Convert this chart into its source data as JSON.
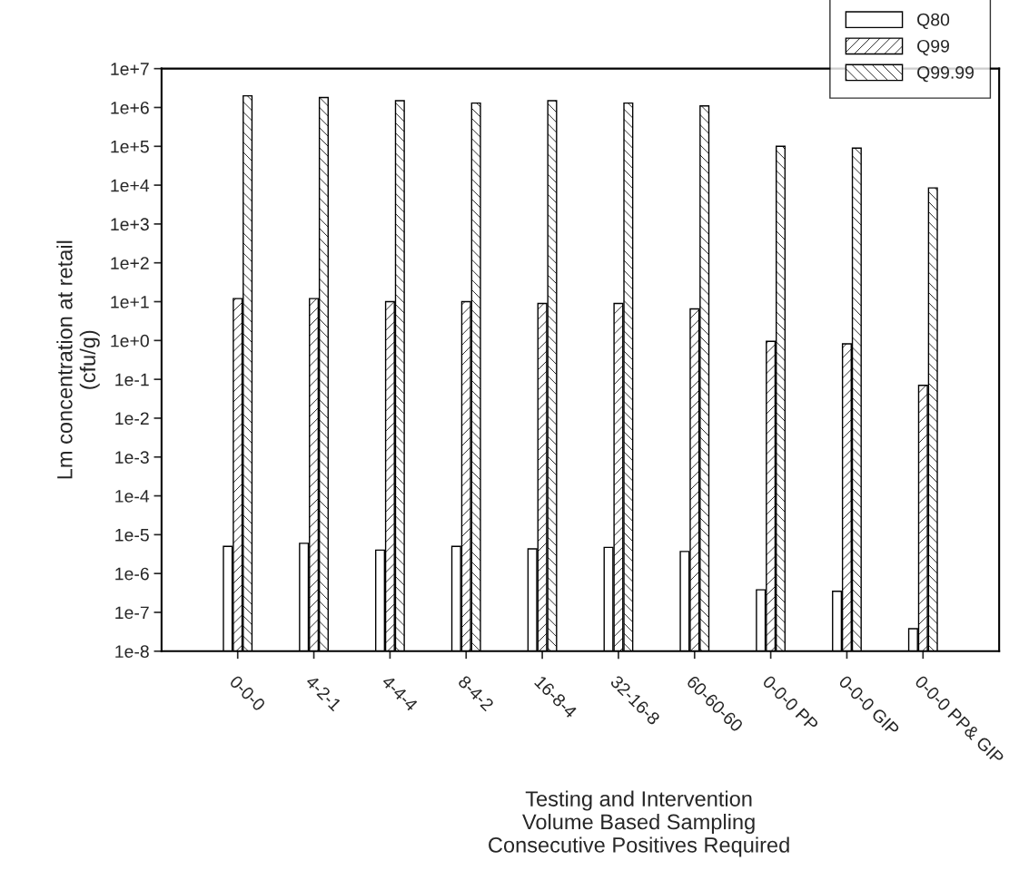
{
  "chart_data": {
    "type": "bar",
    "categories": [
      "0-0-0",
      "4-2-1",
      "4-4-4",
      "8-4-2",
      "16-8-4",
      "32-16-8",
      "60-60-60",
      "0-0-0 PP",
      "0-0-0 GIP",
      "0-0-0 PP& GIP"
    ],
    "series": [
      {
        "name": "Q80",
        "color": "#ffffff",
        "values": [
          5e-06,
          6e-06,
          4e-06,
          5e-06,
          4.3e-06,
          4.7e-06,
          3.7e-06,
          3.8e-07,
          3.5e-07,
          3.8e-08
        ]
      },
      {
        "name": "Q99",
        "color": "#000000",
        "values": [
          12,
          12,
          10,
          10,
          9,
          9,
          6.5,
          0.95,
          0.82,
          0.07
        ]
      },
      {
        "name": "Q99.99",
        "color": "#000000",
        "values": [
          2000000.0,
          1800000.0,
          1500000.0,
          1300000.0,
          1500000.0,
          1300000.0,
          1100000.0,
          100000.0,
          90000.0,
          8500.0
        ]
      }
    ],
    "xlabel": "Testing and Intervention\nVolume Based Sampling\nConsecutive Positives Required",
    "ylabel": "Lm concentration at retail\n(cfu/g)",
    "log": "y",
    "ylim": [
      1e-08,
      10000000.0
    ],
    "yticks": [
      {
        "value": 1e-08,
        "label": "1e-8"
      },
      {
        "value": 1e-07,
        "label": "1e-7"
      },
      {
        "value": 1e-06,
        "label": "1e-6"
      },
      {
        "value": 1e-05,
        "label": "1e-5"
      },
      {
        "value": 0.0001,
        "label": "1e-4"
      },
      {
        "value": 0.001,
        "label": "1e-3"
      },
      {
        "value": 0.01,
        "label": "1e-2"
      },
      {
        "value": 0.1,
        "label": "1e-1"
      },
      {
        "value": 1,
        "label": "1e+0"
      },
      {
        "value": 10,
        "label": "1e+1"
      },
      {
        "value": 100,
        "label": "1e+2"
      },
      {
        "value": 1000,
        "label": "1e+3"
      },
      {
        "value": 10000,
        "label": "1e+4"
      },
      {
        "value": 100000,
        "label": "1e+5"
      },
      {
        "value": 1000000,
        "label": "1e+6"
      },
      {
        "value": 10000000,
        "label": "1e+7"
      }
    ],
    "grid": false,
    "legend": "top right"
  }
}
